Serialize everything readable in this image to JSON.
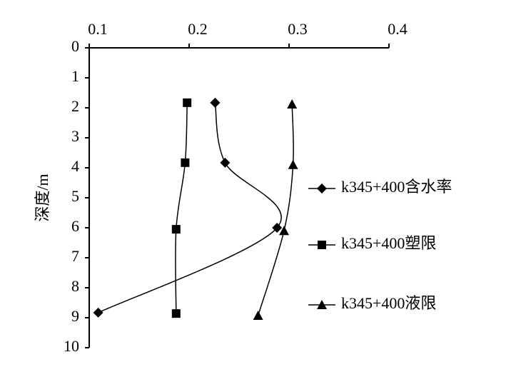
{
  "chart_data": {
    "type": "line",
    "y_label": "深度/m",
    "xlim": [
      0.1,
      0.4
    ],
    "xticks": [
      0.1,
      0.2,
      0.3,
      0.4
    ],
    "ylim": [
      0,
      10
    ],
    "yticks": [
      0,
      1,
      2,
      3,
      4,
      5,
      6,
      7,
      8,
      9,
      10
    ],
    "y_inverted": true,
    "x_axis_position": "top",
    "smooth": true,
    "legend": "right",
    "series": [
      {
        "name": "k345+400含水率",
        "marker": "diamond",
        "color": "#000000",
        "x": [
          0.226,
          0.236,
          0.288,
          0.109
        ],
        "y": [
          1.83,
          3.83,
          6.0,
          8.83
        ]
      },
      {
        "name": "k345+400塑限",
        "marker": "square",
        "color": "#000000",
        "x": [
          0.198,
          0.196,
          0.187,
          0.187
        ],
        "y": [
          1.83,
          3.83,
          6.05,
          8.86
        ]
      },
      {
        "name": "k345+400液限",
        "marker": "triangle",
        "color": "#000000",
        "x": [
          0.303,
          0.304,
          0.295,
          0.269
        ],
        "y": [
          1.88,
          3.9,
          6.1,
          8.93
        ]
      }
    ]
  }
}
